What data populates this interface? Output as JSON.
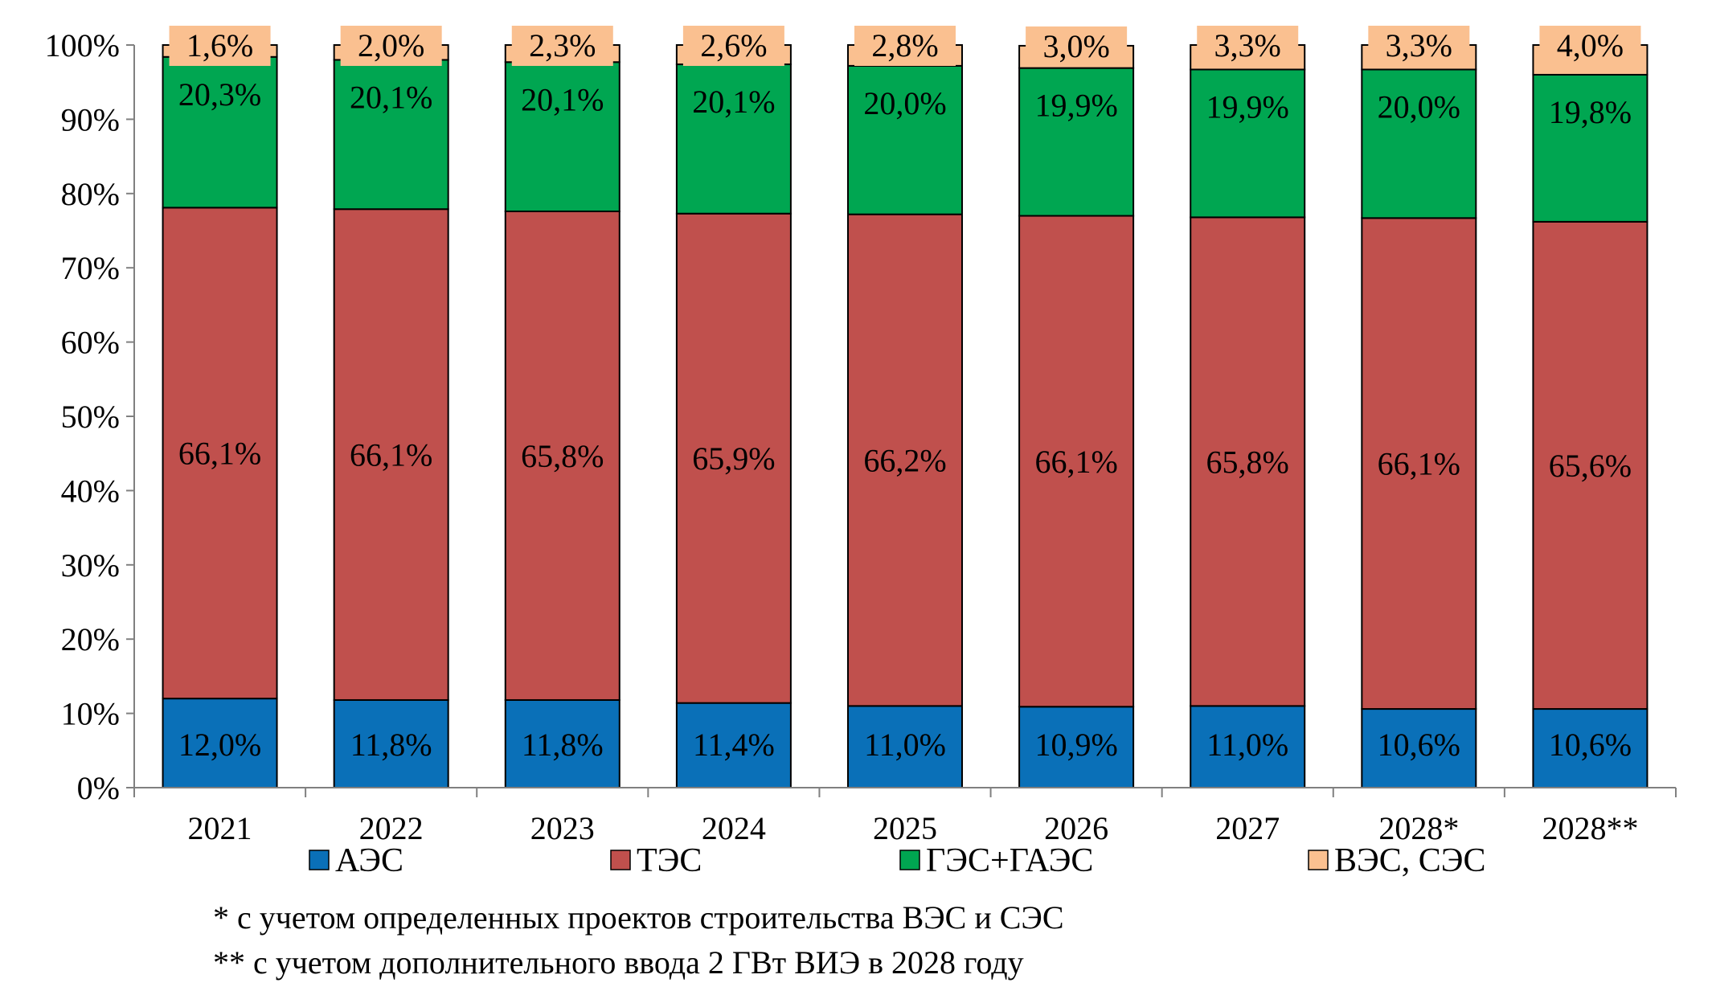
{
  "chart_data": {
    "type": "bar",
    "stacked": true,
    "categories": [
      "2021",
      "2022",
      "2023",
      "2024",
      "2025",
      "2026",
      "2027",
      "2028*",
      "2028**"
    ],
    "series": [
      {
        "name": "АЭС",
        "color": "#0a70b8",
        "values": [
          12.0,
          11.8,
          11.8,
          11.4,
          11.0,
          10.9,
          11.0,
          10.6,
          10.6
        ],
        "labels": [
          "12,0%",
          "11,8%",
          "11,8%",
          "11,4%",
          "11,0%",
          "10,9%",
          "11,0%",
          "10,6%",
          "10,6%"
        ]
      },
      {
        "name": "ТЭС",
        "color": "#c0504d",
        "values": [
          66.1,
          66.1,
          65.8,
          65.9,
          66.2,
          66.1,
          65.8,
          66.1,
          65.6
        ],
        "labels": [
          "66,1%",
          "66,1%",
          "65,8%",
          "65,9%",
          "66,2%",
          "66,1%",
          "65,8%",
          "66,1%",
          "65,6%"
        ]
      },
      {
        "name": "ГЭС+ГАЭС",
        "color": "#00a651",
        "values": [
          20.3,
          20.1,
          20.1,
          20.1,
          20.0,
          19.9,
          19.9,
          20.0,
          19.8
        ],
        "labels": [
          "20,3%",
          "20,1%",
          "20,1%",
          "20,1%",
          "20,0%",
          "19,9%",
          "19,9%",
          "20,0%",
          "19,8%"
        ]
      },
      {
        "name": "ВЭС, СЭС",
        "color": "#fac090",
        "values": [
          1.6,
          2.0,
          2.3,
          2.6,
          2.8,
          3.0,
          3.3,
          3.3,
          4.0
        ],
        "labels": [
          "1,6%",
          "2,0%",
          "2,3%",
          "2,6%",
          "2,8%",
          "3,0%",
          "3,3%",
          "3,3%",
          "4,0%"
        ]
      }
    ],
    "y_ticks": [
      "0%",
      "10%",
      "20%",
      "30%",
      "40%",
      "50%",
      "60%",
      "70%",
      "80%",
      "90%",
      "100%"
    ],
    "ylim": [
      0,
      100
    ],
    "grid": false,
    "legend_position": "bottom"
  },
  "footnotes": {
    "note1": "* с учетом определенных проектов строительства ВЭС и СЭС",
    "note2": "** с учетом дополнительного ввода 2 ГВт ВИЭ в 2028 году"
  }
}
